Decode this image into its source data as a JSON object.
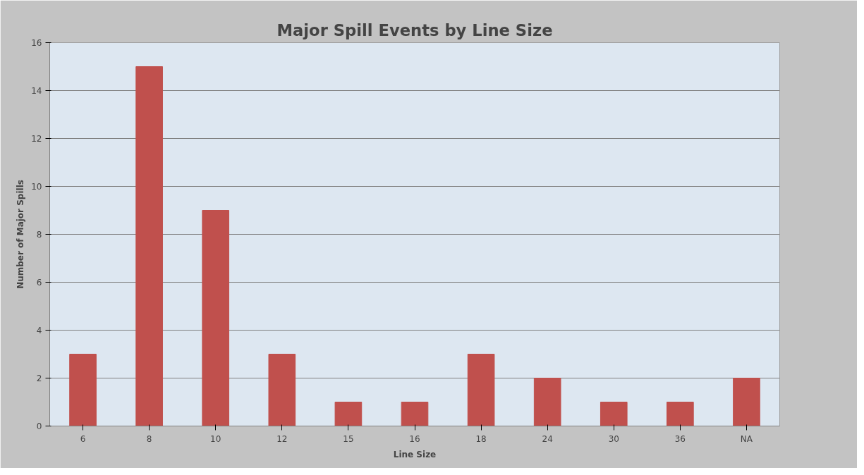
{
  "chart_data": {
    "type": "bar",
    "title": "Major Spill Events by Line Size",
    "xlabel": "Line Size",
    "ylabel": "Number of Major Spills",
    "categories": [
      "6",
      "8",
      "10",
      "12",
      "15",
      "16",
      "18",
      "24",
      "30",
      "36",
      "NA"
    ],
    "values": [
      3,
      15,
      9,
      3,
      1,
      1,
      3,
      2,
      1,
      1,
      2
    ],
    "color": "#c0504d",
    "ylim": [
      0,
      16
    ],
    "yticks": [
      0,
      2,
      4,
      6,
      8,
      10,
      12,
      14,
      16
    ],
    "grid": "y"
  }
}
